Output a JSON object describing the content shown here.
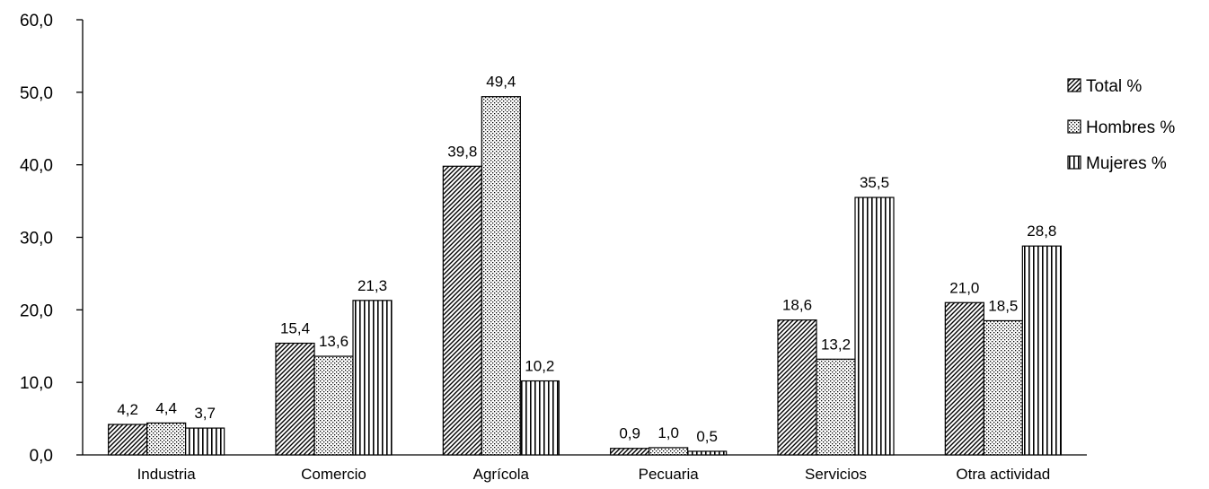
{
  "chart_data": {
    "type": "bar",
    "categories": [
      "Industria",
      "Comercio",
      "Agrícola",
      "Pecuaria",
      "Servicios",
      "Otra actividad"
    ],
    "series": [
      {
        "name": "Total %",
        "values": [
          4.2,
          15.4,
          39.8,
          0.9,
          18.6,
          21.0
        ],
        "labels": [
          "4,2",
          "15,4",
          "39,8",
          "0,9",
          "18,6",
          "21,0"
        ],
        "pattern": "diagonal"
      },
      {
        "name": "Hombres %",
        "values": [
          4.4,
          13.6,
          49.4,
          1.0,
          13.2,
          18.5
        ],
        "labels": [
          "4,4",
          "13,6",
          "49,4",
          "1,0",
          "13,2",
          "18,5"
        ],
        "pattern": "dots"
      },
      {
        "name": "Mujeres %",
        "values": [
          3.7,
          21.3,
          10.2,
          0.5,
          35.5,
          28.8
        ],
        "labels": [
          "3,7",
          "21,3",
          "10,2",
          "0,5",
          "35,5",
          "28,8"
        ],
        "pattern": "vertical"
      }
    ],
    "y_ticks": [
      "0,0",
      "10,0",
      "20,0",
      "30,0",
      "40,0",
      "50,0",
      "60,0"
    ],
    "ylim": [
      0,
      60
    ],
    "title": "",
    "xlabel": "",
    "ylabel": "",
    "grid": false,
    "legend_position": "right"
  }
}
